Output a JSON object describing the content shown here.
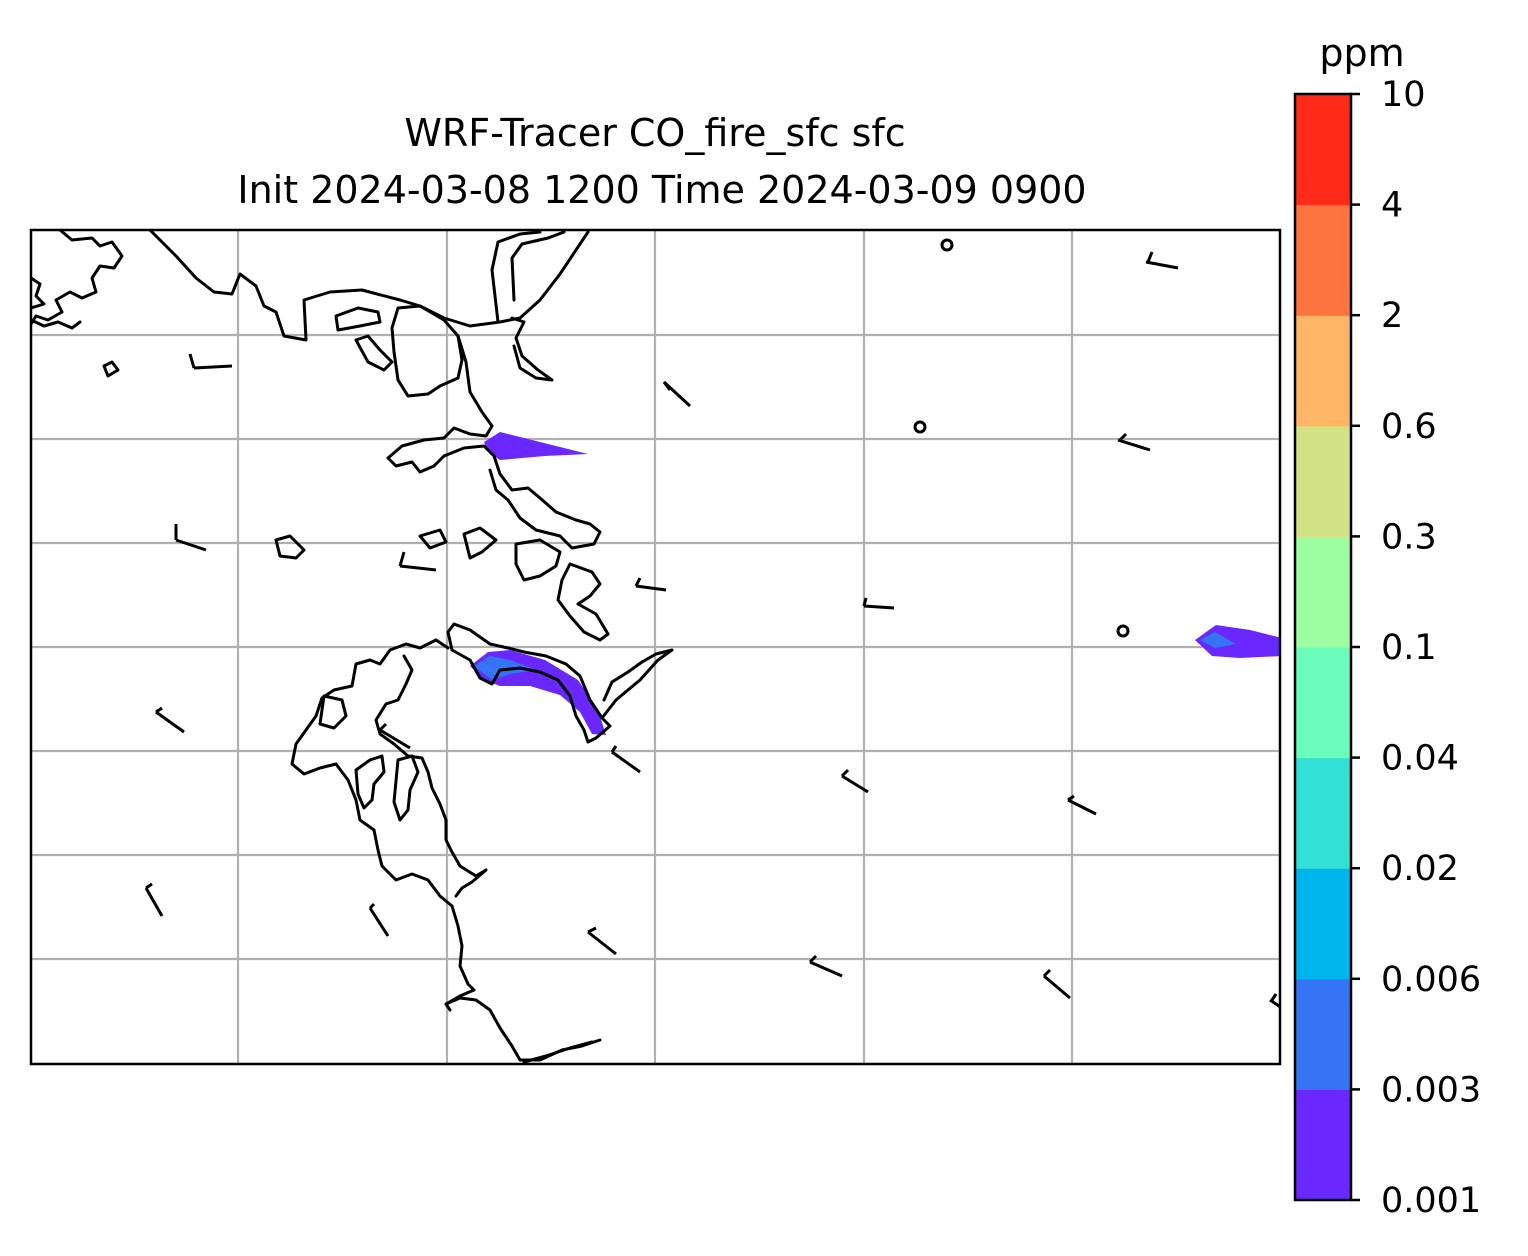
{
  "title": {
    "line1": "WRF-Tracer CO_fire_sfc sfc",
    "line2": "Init 2024-03-08 1200 Time 2024-03-09 0900"
  },
  "colorbar": {
    "unit": "ppm",
    "levels": [
      "0.001",
      "0.003",
      "0.006",
      "0.02",
      "0.04",
      "0.1",
      "0.3",
      "0.6",
      "2",
      "4",
      "10"
    ],
    "colors": [
      "#6a28ff",
      "#3574f5",
      "#00b4ee",
      "#32e0d6",
      "#6bfcbb",
      "#9cfca0",
      "#d2e285",
      "#ffb566",
      "#ff7340",
      "#ff2a18"
    ]
  },
  "map": {
    "plume_colors": {
      "outer": "#6a28ff",
      "core": "#3574f5"
    },
    "coastline_color": "#000000",
    "gridline_color": "#b0b0b0",
    "wind_symbols": [
      "barb",
      "calm"
    ]
  }
}
